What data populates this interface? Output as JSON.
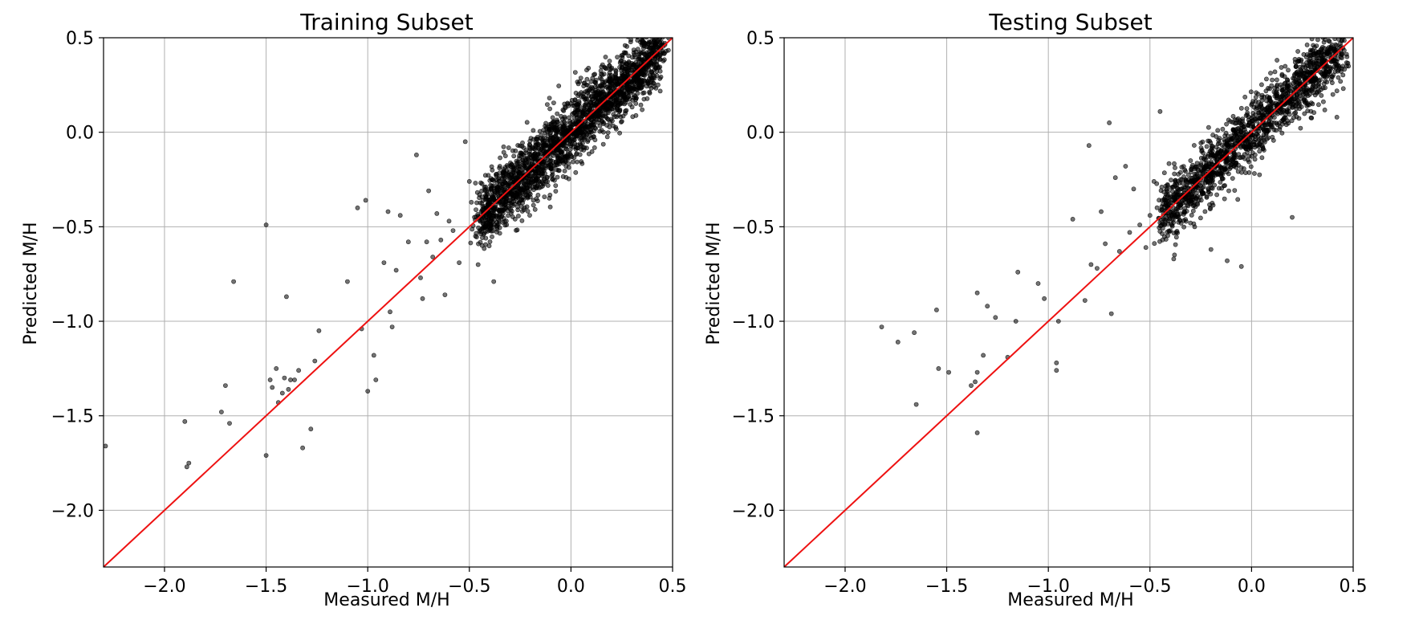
{
  "colors": {
    "reference_line": "#ee1111",
    "points": "#000000",
    "grid": "#b0b0b0"
  },
  "chart_data": [
    {
      "type": "scatter",
      "title": "Training Subset",
      "xlabel": "Measured M/H",
      "ylabel": "Predicted M/H",
      "xlim": [
        -2.3,
        0.5
      ],
      "ylim": [
        -2.3,
        0.5
      ],
      "xticks": [
        -2.0,
        -1.5,
        -1.0,
        -0.5,
        0.0,
        0.5
      ],
      "yticks": [
        -2.0,
        -1.5,
        -1.0,
        -0.5,
        0.0,
        0.5
      ],
      "xtick_labels": [
        "−2.0",
        "−1.5",
        "−1.0",
        "−0.5",
        "0.0",
        "0.5"
      ],
      "ytick_labels": [
        "−2.0",
        "−1.5",
        "−1.0",
        "−0.5",
        "0.0",
        "0.5"
      ],
      "grid": true,
      "reference_line": {
        "label": "y = x",
        "from": [
          -2.3,
          -2.3
        ],
        "to": [
          0.5,
          0.5
        ]
      },
      "points_generated": {
        "count": 2200,
        "seed": 11,
        "note": "dense cloud along y=x over x in [-0.45, 0.45], spread ~0.1"
      },
      "points": [
        [
          -2.29,
          -1.66
        ],
        [
          -1.9,
          -1.53
        ],
        [
          -1.89,
          -1.77
        ],
        [
          -1.88,
          -1.75
        ],
        [
          -1.72,
          -1.48
        ],
        [
          -1.7,
          -1.34
        ],
        [
          -1.68,
          -1.54
        ],
        [
          -1.66,
          -0.79
        ],
        [
          -1.5,
          -0.49
        ],
        [
          -1.5,
          -1.71
        ],
        [
          -1.48,
          -1.31
        ],
        [
          -1.47,
          -1.35
        ],
        [
          -1.45,
          -1.25
        ],
        [
          -1.44,
          -1.43
        ],
        [
          -1.42,
          -1.38
        ],
        [
          -1.41,
          -1.3
        ],
        [
          -1.4,
          -0.87
        ],
        [
          -1.39,
          -1.36
        ],
        [
          -1.38,
          -1.31
        ],
        [
          -1.36,
          -1.31
        ],
        [
          -1.34,
          -1.26
        ],
        [
          -1.32,
          -1.67
        ],
        [
          -1.28,
          -1.57
        ],
        [
          -1.26,
          -1.21
        ],
        [
          -1.24,
          -1.05
        ],
        [
          -1.1,
          -0.79
        ],
        [
          -1.05,
          -0.4
        ],
        [
          -1.03,
          -1.04
        ],
        [
          -1.01,
          -0.36
        ],
        [
          -1.0,
          -1.37
        ],
        [
          -0.97,
          -1.18
        ],
        [
          -0.96,
          -1.31
        ],
        [
          -0.92,
          -0.69
        ],
        [
          -0.9,
          -0.42
        ],
        [
          -0.89,
          -0.95
        ],
        [
          -0.88,
          -1.03
        ],
        [
          -0.86,
          -0.73
        ],
        [
          -0.84,
          -0.44
        ],
        [
          -0.8,
          -0.58
        ],
        [
          -0.76,
          -0.12
        ],
        [
          -0.74,
          -0.77
        ],
        [
          -0.73,
          -0.88
        ],
        [
          -0.71,
          -0.58
        ],
        [
          -0.7,
          -0.31
        ],
        [
          -0.68,
          -0.66
        ],
        [
          -0.66,
          -0.43
        ],
        [
          -0.64,
          -0.57
        ],
        [
          -0.62,
          -0.86
        ],
        [
          -0.6,
          -0.47
        ],
        [
          -0.58,
          -0.52
        ],
        [
          -0.55,
          -0.69
        ],
        [
          -0.52,
          -0.05
        ],
        [
          -0.5,
          -0.26
        ],
        [
          -0.49,
          -0.37
        ],
        [
          -0.47,
          -0.55
        ],
        [
          -0.45,
          -0.33
        ],
        [
          -0.41,
          -0.5
        ],
        [
          -0.38,
          -0.79
        ],
        [
          -0.35,
          -0.18
        ],
        [
          -0.32,
          -0.4
        ]
      ]
    },
    {
      "type": "scatter",
      "title": "Testing Subset",
      "xlabel": "Measured M/H",
      "ylabel": "Predicted M/H",
      "xlim": [
        -2.3,
        0.5
      ],
      "ylim": [
        -2.3,
        0.5
      ],
      "xticks": [
        -2.0,
        -1.5,
        -1.0,
        -0.5,
        0.0,
        0.5
      ],
      "yticks": [
        -2.0,
        -1.5,
        -1.0,
        -0.5,
        0.0,
        0.5
      ],
      "xtick_labels": [
        "−2.0",
        "−1.5",
        "−1.0",
        "−0.5",
        "0.0",
        "0.5"
      ],
      "ytick_labels": [
        "−2.0",
        "−1.5",
        "−1.0",
        "−0.5",
        "0.0",
        "0.5"
      ],
      "grid": true,
      "reference_line": {
        "label": "y = x",
        "from": [
          -2.3,
          -2.3
        ],
        "to": [
          0.5,
          0.5
        ]
      },
      "points_generated": {
        "count": 1500,
        "seed": 29,
        "note": "dense cloud along y=x over x in [-0.45, 0.45], spread ~0.1"
      },
      "points": [
        [
          -1.82,
          -1.03
        ],
        [
          -1.74,
          -1.11
        ],
        [
          -1.66,
          -1.06
        ],
        [
          -1.65,
          -1.44
        ],
        [
          -1.55,
          -0.94
        ],
        [
          -1.54,
          -1.25
        ],
        [
          -1.49,
          -1.27
        ],
        [
          -1.38,
          -1.34
        ],
        [
          -1.36,
          -1.32
        ],
        [
          -1.35,
          -0.85
        ],
        [
          -1.35,
          -1.27
        ],
        [
          -1.35,
          -1.59
        ],
        [
          -1.32,
          -1.18
        ],
        [
          -1.3,
          -0.92
        ],
        [
          -1.26,
          -0.98
        ],
        [
          -1.2,
          -1.19
        ],
        [
          -1.16,
          -1.0
        ],
        [
          -1.15,
          -0.74
        ],
        [
          -1.05,
          -0.8
        ],
        [
          -1.02,
          -0.88
        ],
        [
          -0.96,
          -1.22
        ],
        [
          -0.96,
          -1.26
        ],
        [
          -0.95,
          -1.0
        ],
        [
          -0.88,
          -0.46
        ],
        [
          -0.82,
          -0.89
        ],
        [
          -0.8,
          -0.07
        ],
        [
          -0.79,
          -0.7
        ],
        [
          -0.76,
          -0.72
        ],
        [
          -0.74,
          -0.42
        ],
        [
          -0.72,
          -0.59
        ],
        [
          -0.7,
          0.05
        ],
        [
          -0.69,
          -0.96
        ],
        [
          -0.67,
          -0.24
        ],
        [
          -0.65,
          -0.63
        ],
        [
          -0.62,
          -0.18
        ],
        [
          -0.6,
          -0.53
        ],
        [
          -0.58,
          -0.3
        ],
        [
          -0.55,
          -0.49
        ],
        [
          -0.52,
          -0.61
        ],
        [
          -0.5,
          -0.44
        ],
        [
          -0.48,
          -0.26
        ],
        [
          -0.45,
          0.11
        ],
        [
          -0.44,
          -0.36
        ],
        [
          -0.4,
          -0.52
        ],
        [
          -0.38,
          -0.22
        ],
        [
          -0.35,
          -0.4
        ],
        [
          -0.32,
          -0.28
        ],
        [
          -0.3,
          -0.15
        ],
        [
          -0.28,
          -0.5
        ],
        [
          -0.25,
          -0.31
        ],
        [
          -0.2,
          -0.62
        ],
        [
          -0.12,
          -0.68
        ],
        [
          -0.05,
          -0.71
        ],
        [
          0.15,
          0.3
        ],
        [
          0.2,
          -0.45
        ],
        [
          0.3,
          0.15
        ],
        [
          0.38,
          0.42
        ],
        [
          0.4,
          0.2
        ],
        [
          0.45,
          0.35
        ],
        [
          0.42,
          0.08
        ]
      ]
    }
  ]
}
